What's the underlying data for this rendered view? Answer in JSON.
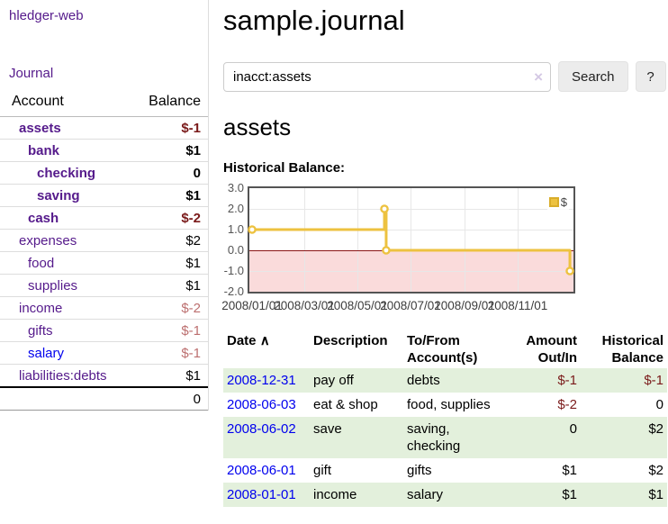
{
  "app": {
    "brand": "hledger-web"
  },
  "nav": {
    "journal": "Journal"
  },
  "sidebar": {
    "header": {
      "account": "Account",
      "balance": "Balance"
    },
    "accounts": [
      {
        "name": "assets",
        "balance": "$-1"
      },
      {
        "name": "bank",
        "balance": "$1"
      },
      {
        "name": "checking",
        "balance": "0"
      },
      {
        "name": "saving",
        "balance": "$1"
      },
      {
        "name": "cash",
        "balance": "$-2"
      },
      {
        "name": "expenses",
        "balance": "$2"
      },
      {
        "name": "food",
        "balance": "$1"
      },
      {
        "name": "supplies",
        "balance": "$1"
      },
      {
        "name": "income",
        "balance": "$-2"
      },
      {
        "name": "gifts",
        "balance": "$-1"
      },
      {
        "name": "salary",
        "balance": "$-1"
      },
      {
        "name": "liabilities:debts",
        "balance": "$1"
      }
    ],
    "total": "0"
  },
  "main": {
    "title": "sample.journal",
    "search": {
      "value": "inacct:assets",
      "clear_icon": "×",
      "search_button": "Search",
      "help_button": "?"
    },
    "account_heading": "assets",
    "chart_title": "Historical Balance:"
  },
  "chart_data": {
    "type": "line",
    "step": true,
    "title": "Historical Balance:",
    "legend": {
      "label": "$",
      "position": "top-right"
    },
    "series": [
      {
        "name": "$",
        "color": "#edc240",
        "points": [
          {
            "x": "2008-01-01",
            "y": 1
          },
          {
            "x": "2008-06-01",
            "y": 2
          },
          {
            "x": "2008-06-03",
            "y": 0
          },
          {
            "x": "2008-12-31",
            "y": -1
          }
        ]
      }
    ],
    "x_range": [
      "2008-01-01",
      "2009-01-01"
    ],
    "ylim": [
      -2,
      3
    ],
    "yticks": [
      {
        "label": "3.0",
        "value": 3
      },
      {
        "label": "2.0",
        "value": 2
      },
      {
        "label": "1.0",
        "value": 1
      },
      {
        "label": "0.0",
        "value": 0
      },
      {
        "label": "-1.0",
        "value": -1
      },
      {
        "label": "-2.0",
        "value": -2
      }
    ],
    "xticks": [
      {
        "label": "2008/01/01",
        "value": "2008-01-01"
      },
      {
        "label": "2008/03/01",
        "value": "2008-03-01"
      },
      {
        "label": "2008/05/01",
        "value": "2008-05-01"
      },
      {
        "label": "2008/07/01",
        "value": "2008-07-01"
      },
      {
        "label": "2008/09/01",
        "value": "2008-09-01"
      },
      {
        "label": "2008/11/01",
        "value": "2008-11-01"
      }
    ],
    "grid": true,
    "negative_region": true,
    "zero_line_color": "#8b1616",
    "negative_region_color": "#fadbdb"
  },
  "register": {
    "sort_icon": "∧",
    "headers": {
      "date": {
        "line1": "Date"
      },
      "description": {
        "line1": "Description"
      },
      "accounts": {
        "line1": "To/From",
        "line2": "Account(s)"
      },
      "amount": {
        "line1": "Amount",
        "line2": "Out/In"
      },
      "balance": {
        "line1": "Historical",
        "line2": "Balance"
      }
    },
    "rows": [
      {
        "date": "2008-12-31",
        "description": "pay off",
        "accounts": "debts",
        "amount": "$-1",
        "balance": "$-1"
      },
      {
        "date": "2008-06-03",
        "description": "eat & shop",
        "accounts": "food, supplies",
        "amount": "$-2",
        "balance": "0"
      },
      {
        "date": "2008-06-02",
        "description": "save",
        "accounts": "saving, checking",
        "amount": "0",
        "balance": "$2"
      },
      {
        "date": "2008-06-01",
        "description": "gift",
        "accounts": "gifts",
        "amount": "$1",
        "balance": "$2"
      },
      {
        "date": "2008-01-01",
        "description": "income",
        "accounts": "salary",
        "amount": "$1",
        "balance": "$1"
      }
    ]
  },
  "colors": {
    "link_purple": "#551a8b",
    "link_blue": "#0000ee",
    "negative_strong": "#7a1a1a",
    "negative_soft": "#bc6f6f",
    "row_green": "#e3f0dc",
    "chart_line": "#edc240",
    "chart_border": "#545454"
  }
}
